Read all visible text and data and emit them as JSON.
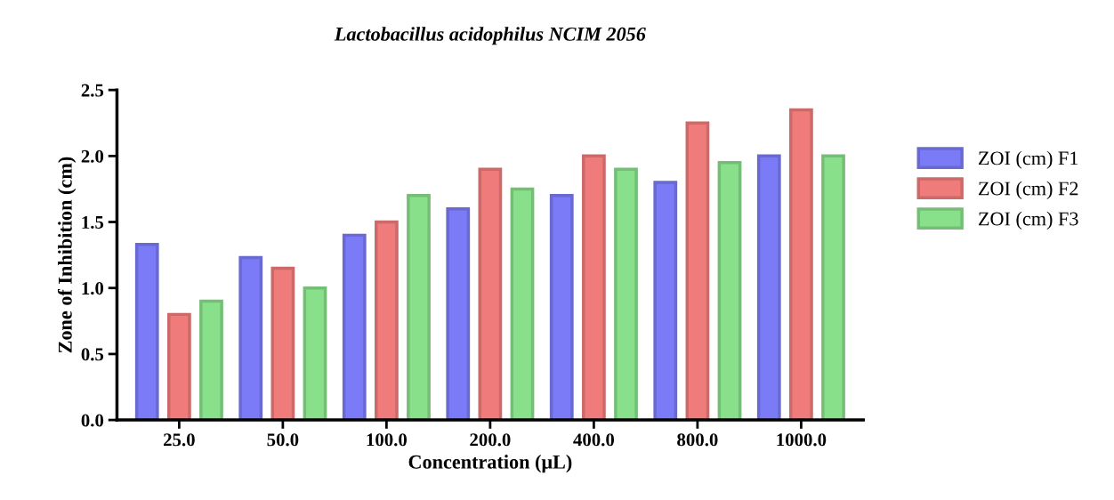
{
  "chart_data": {
    "type": "bar",
    "title": "Lactobacillus acidophilus NCIM 2056",
    "xlabel": "Concentration (μL)",
    "ylabel": "Zone of Inhibition (cm)",
    "categories": [
      "25.0",
      "50.0",
      "100.0",
      "200.0",
      "400.0",
      "800.0",
      "1000.0"
    ],
    "series": [
      {
        "name": "ZOI (cm) F1",
        "color": "#7b7bf7",
        "values": [
          1.33,
          1.23,
          1.4,
          1.6,
          1.7,
          1.8,
          2.0
        ]
      },
      {
        "name": "ZOI (cm) F2",
        "color": "#f07b7b",
        "values": [
          0.8,
          1.15,
          1.5,
          1.9,
          2.0,
          2.25,
          2.35
        ]
      },
      {
        "name": "ZOI (cm) F3",
        "color": "#88e08a",
        "values": [
          0.9,
          1.0,
          1.7,
          1.75,
          1.9,
          1.95,
          2.0
        ]
      }
    ],
    "ylim": [
      0,
      2.5
    ],
    "yticks": [
      {
        "value": 0,
        "label": "0.0"
      },
      {
        "value": 0.5,
        "label": "0.5"
      },
      {
        "value": 1,
        "label": "1.0"
      },
      {
        "value": 1.5,
        "label": "1.5"
      },
      {
        "value": 2,
        "label": "2.0"
      },
      {
        "value": 2.5,
        "label": "2.5"
      }
    ],
    "grid": false,
    "legend": "right"
  }
}
